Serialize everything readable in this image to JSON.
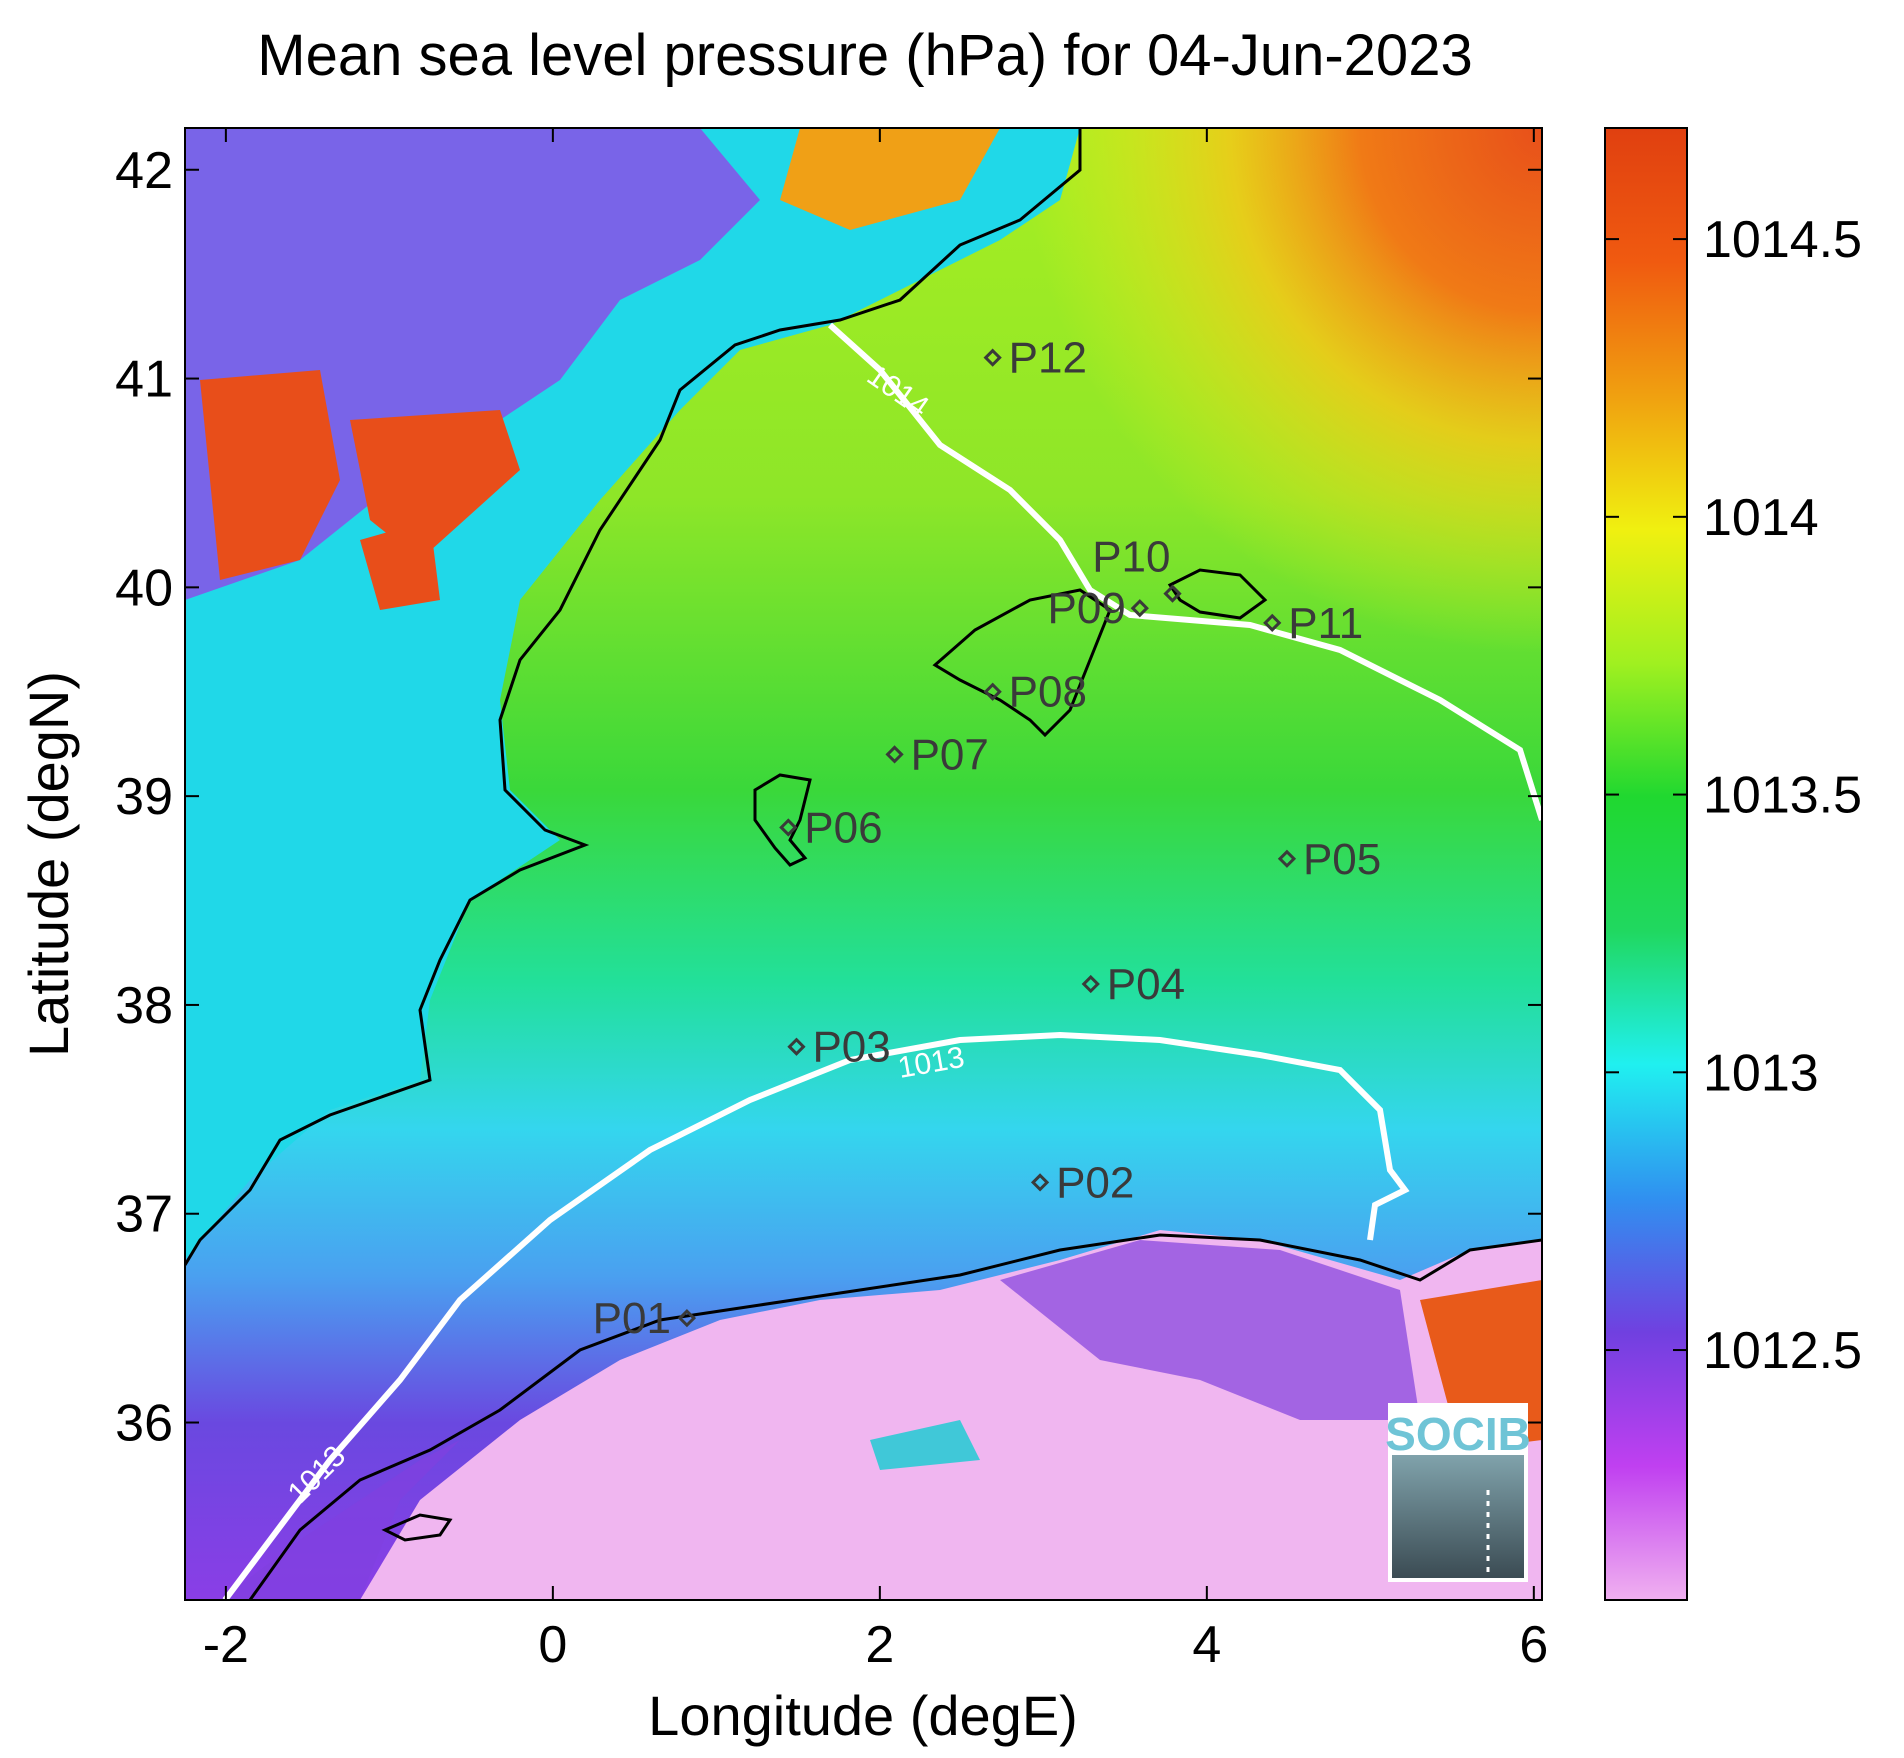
{
  "title": "Mean sea level pressure (hPa) for 04-Jun-2023",
  "chart_data": {
    "type": "heatmap",
    "title": "Mean sea level pressure (hPa) for 04-Jun-2023",
    "xlabel": "Longitude (degE)",
    "ylabel": "Latitude (degN)",
    "xlim": [
      -2.25,
      6.05
    ],
    "ylim": [
      35.15,
      42.2
    ],
    "x_ticks": [
      -2,
      0,
      2,
      4,
      6
    ],
    "y_ticks": [
      36,
      37,
      38,
      39,
      40,
      41,
      42
    ],
    "colorbar": {
      "range": [
        1012.05,
        1014.7
      ],
      "ticks": [
        1012.5,
        1013,
        1013.5,
        1014,
        1014.5
      ],
      "colors": [
        "#f0b0f0",
        "#c040f0",
        "#7040e0",
        "#3090f0",
        "#20f0f0",
        "#20d860",
        "#20d830",
        "#a0f020",
        "#f0f010",
        "#f0a010",
        "#f05a10",
        "#e04010"
      ]
    },
    "contours": [
      {
        "label": "1014",
        "value": 1014
      },
      {
        "label": "1013",
        "value": 1013
      },
      {
        "label": "1013",
        "value": 1013
      }
    ],
    "stations": [
      {
        "name": "P01",
        "lon": 0.82,
        "lat": 36.5
      },
      {
        "name": "P02",
        "lon": 2.98,
        "lat": 37.15
      },
      {
        "name": "P03",
        "lon": 1.49,
        "lat": 37.8
      },
      {
        "name": "P04",
        "lon": 3.29,
        "lat": 38.1
      },
      {
        "name": "P05",
        "lon": 4.49,
        "lat": 38.7
      },
      {
        "name": "P06",
        "lon": 1.44,
        "lat": 38.85
      },
      {
        "name": "P07",
        "lon": 2.09,
        "lat": 39.2
      },
      {
        "name": "P08",
        "lon": 2.69,
        "lat": 39.5
      },
      {
        "name": "P09",
        "lon": 3.59,
        "lat": 39.9
      },
      {
        "name": "P10",
        "lon": 3.79,
        "lat": 39.97
      },
      {
        "name": "P11",
        "lon": 4.4,
        "lat": 39.83
      },
      {
        "name": "P12",
        "lon": 2.69,
        "lat": 41.1
      }
    ]
  },
  "logo": {
    "text": "SOCIB"
  }
}
